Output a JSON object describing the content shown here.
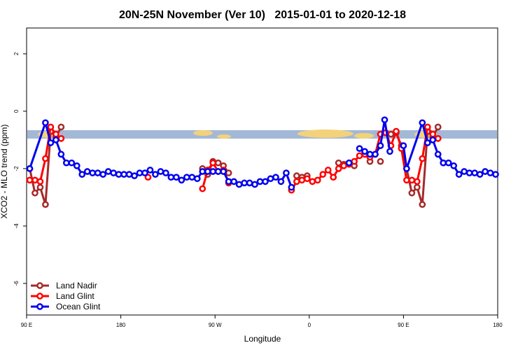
{
  "chart_data": {
    "type": "line",
    "title": "20N-25N November (Ver 10)   2015-01-01 to 2020-12-18",
    "x_label": "Longitude",
    "y_label": "XCO2 - MLO trend (ppm)",
    "xlim": [
      90,
      540
    ],
    "xticks": [
      {
        "value": 90,
        "label": "90 E"
      },
      180,
      {
        "value": 270,
        "label": "90 W"
      },
      {
        "value": 360,
        "label": "0"
      },
      {
        "value": 450,
        "label": "90 E"
      },
      {
        "value": 540,
        "label": "180"
      }
    ],
    "ylim": [
      -7.1,
      2.9
    ],
    "yticks": [
      -6,
      -4,
      -2,
      0,
      2
    ],
    "legend": "lower left",
    "series": [
      {
        "name": "Land Nadir",
        "color": "#a52a2a",
        "x": [
          93,
          98,
          103,
          108,
          113,
          118,
          123,
          null,
          258,
          263,
          268,
          273,
          278,
          283,
          null,
          348,
          353,
          358,
          null,
          388,
          393,
          398,
          403,
          null,
          413,
          418,
          null,
          428,
          null,
          438,
          443,
          448,
          453,
          458,
          463,
          468,
          473,
          478,
          483
        ],
        "values": [
          -2.0,
          -2.85,
          -2.65,
          -3.25,
          -0.7,
          -0.9,
          -0.55,
          null,
          -2.0,
          -2.2,
          -1.75,
          -1.8,
          -1.9,
          -2.15,
          null,
          -2.25,
          -2.3,
          -2.25,
          null,
          -1.8,
          -1.85,
          -1.8,
          -1.9,
          null,
          -1.45,
          -1.75,
          null,
          -1.75,
          null,
          -0.8,
          -0.75,
          -1.2,
          -2.0,
          -2.85,
          -2.65,
          -3.25,
          -0.7,
          -0.9,
          -0.55
        ]
      },
      {
        "name": "Land Glint",
        "color": "#ff0000",
        "x": [
          93,
          98,
          103,
          108,
          113,
          118,
          123,
          null,
          206,
          null,
          258,
          263,
          268,
          273,
          278,
          283,
          null,
          343,
          348,
          353,
          358,
          363,
          368,
          373,
          378,
          383,
          388,
          393,
          398,
          403,
          408,
          413,
          418,
          423,
          428,
          433,
          438,
          443,
          448,
          453,
          458,
          463,
          468,
          473,
          478,
          483
        ],
        "values": [
          -2.4,
          -2.4,
          -2.45,
          -1.65,
          -0.55,
          -0.8,
          -0.95,
          null,
          -2.3,
          null,
          -2.7,
          -2.05,
          -1.8,
          -2.1,
          -2.05,
          -2.5,
          null,
          -2.75,
          -2.45,
          -2.4,
          -2.35,
          -2.45,
          -2.4,
          -2.2,
          -2.05,
          -2.3,
          -2.0,
          -1.9,
          -1.85,
          -1.75,
          -1.55,
          -1.5,
          -1.6,
          -1.5,
          -0.8,
          -0.75,
          -1.2,
          -0.7,
          -1.3,
          -2.4,
          -2.4,
          -2.45,
          -1.65,
          -0.55,
          -0.8,
          -0.95
        ]
      },
      {
        "name": "Ocean Glint",
        "color": "#0000ee",
        "x": [
          93,
          108,
          113,
          118,
          123,
          128,
          133,
          138,
          143,
          148,
          153,
          158,
          163,
          168,
          173,
          178,
          183,
          188,
          193,
          198,
          203,
          208,
          213,
          218,
          223,
          228,
          233,
          238,
          243,
          248,
          253,
          258,
          263,
          268,
          273,
          278,
          283,
          288,
          293,
          298,
          303,
          308,
          313,
          318,
          323,
          328,
          333,
          338,
          343,
          null,
          398,
          null,
          408,
          413,
          418,
          423,
          428,
          432,
          437,
          null,
          450,
          453,
          468,
          473,
          478,
          483,
          488,
          493,
          498,
          503,
          508,
          513,
          518,
          523,
          528,
          533,
          538
        ],
        "values": [
          -2.0,
          -0.4,
          -1.1,
          -1.0,
          -1.5,
          -1.8,
          -1.8,
          -1.9,
          -2.2,
          -2.1,
          -2.15,
          -2.15,
          -2.2,
          -2.1,
          -2.15,
          -2.2,
          -2.2,
          -2.2,
          -2.25,
          -2.15,
          -2.15,
          -2.05,
          -2.2,
          -2.1,
          -2.15,
          -2.3,
          -2.3,
          -2.4,
          -2.3,
          -2.3,
          -2.35,
          -2.1,
          -2.1,
          -2.1,
          -2.1,
          -2.1,
          -2.45,
          -2.45,
          -2.55,
          -2.5,
          -2.5,
          -2.55,
          -2.45,
          -2.45,
          -2.35,
          -2.3,
          -2.45,
          -2.15,
          -2.65,
          null,
          -1.8,
          null,
          -1.3,
          -1.4,
          -1.5,
          -1.5,
          -1.2,
          -0.3,
          -1.4,
          null,
          -1.2,
          -2.0,
          -0.4,
          -1.1,
          -1.0,
          -1.5,
          -1.8,
          -1.8,
          -1.9,
          -2.2,
          -2.1,
          -2.15,
          -2.15,
          -2.2,
          -2.1,
          -2.15,
          -2.2
        ]
      }
    ]
  }
}
